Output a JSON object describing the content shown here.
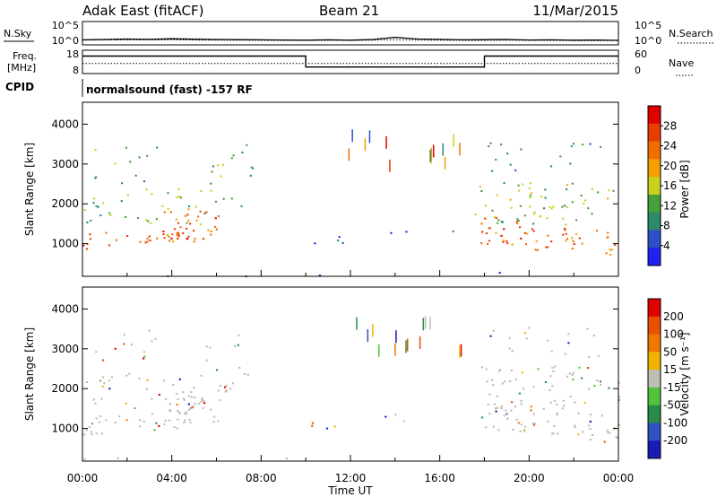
{
  "header": {
    "radar": "Adak East (fitACF)",
    "beam": "Beam 21",
    "date": "11/Mar/2015"
  },
  "side_labels": {
    "nsky": "N.Sky",
    "freq": "Freq.",
    "mhz": "[MHz]",
    "cpid": "CPID",
    "nsearch": "N.Search",
    "nave": "Nave"
  },
  "cpid_text": "normalsound (fast) -157 RF",
  "colors": {
    "line": "#000000",
    "power_scale": [
      "#1e22f0",
      "#2d4fc8",
      "#2f8a6a",
      "#46a13a",
      "#c8d21e",
      "#f5a000",
      "#f06e00",
      "#e83c00",
      "#e00000"
    ],
    "velocity_scale": [
      "#1a1ab4",
      "#2f52c0",
      "#2a8c4a",
      "#52c23a",
      "#bdbdb4",
      "#f0b400",
      "#f07800",
      "#e85000",
      "#e00000"
    ],
    "ground_scatter": "#bdbab2"
  },
  "chart_data": [
    {
      "type": "line",
      "panel": "noise",
      "left_ticks": [
        "10^5",
        "10^0"
      ],
      "right_ticks": [
        "10^5",
        "10^0"
      ],
      "x": [
        0,
        1,
        2,
        3,
        4,
        5,
        6,
        7,
        8,
        9,
        10,
        11,
        12,
        13,
        14,
        15,
        16,
        17,
        18,
        19,
        20,
        21,
        22,
        23,
        24
      ],
      "series": [
        {
          "name": "N.Sky",
          "values": [
            12,
            14,
            18,
            15,
            20,
            16,
            14,
            13,
            12,
            11,
            10,
            12,
            10,
            14,
            40,
            18,
            15,
            12,
            13,
            14,
            11,
            12,
            10,
            11,
            9
          ]
        },
        {
          "name": "N.Search",
          "values": [
            10,
            11,
            12,
            11,
            12,
            11,
            10,
            10,
            9,
            9,
            9,
            9,
            9,
            10,
            12,
            10,
            10,
            9,
            9,
            10,
            9,
            9,
            8,
            8,
            8
          ]
        }
      ]
    },
    {
      "type": "line",
      "panel": "frequency",
      "left_ticks": [
        "18",
        "8"
      ],
      "right_ticks": [
        "60",
        "0"
      ],
      "x": [
        0,
        10,
        18,
        24
      ],
      "series": [
        {
          "name": "Freq.",
          "values": [
            15.5,
            10.8,
            15.5,
            15.5
          ]
        },
        {
          "name": "Nave",
          "values": [
            26,
            26,
            26,
            26
          ]
        }
      ]
    },
    {
      "type": "heatmap",
      "panel": "power",
      "ylabel": "Slant Range [km]",
      "yticks": [
        1000,
        2000,
        3000,
        4000
      ],
      "ylim": [
        180,
        4550
      ],
      "xlim": [
        0,
        24
      ],
      "colorbar_label": "Power [dB]",
      "colorbar_ticks": [
        4,
        8,
        12,
        16,
        20,
        24,
        28
      ],
      "colorbar_range": [
        0,
        32
      ]
    },
    {
      "type": "heatmap",
      "panel": "velocity",
      "ylabel": "Slant Range [km]",
      "yticks": [
        1000,
        2000,
        3000,
        4000
      ],
      "ylim": [
        180,
        4550
      ],
      "xlim": [
        0,
        24
      ],
      "colorbar_label": "Velocity [m s⁻¹]",
      "colorbar_ticks": [
        "200",
        "100",
        "50",
        "15",
        "-15",
        "-50",
        "-100",
        "-200"
      ],
      "xticks": [
        "00:00",
        "04:00",
        "08:00",
        "12:00",
        "16:00",
        "20:00",
        "00:00"
      ],
      "xlabel": "Time UT"
    }
  ]
}
